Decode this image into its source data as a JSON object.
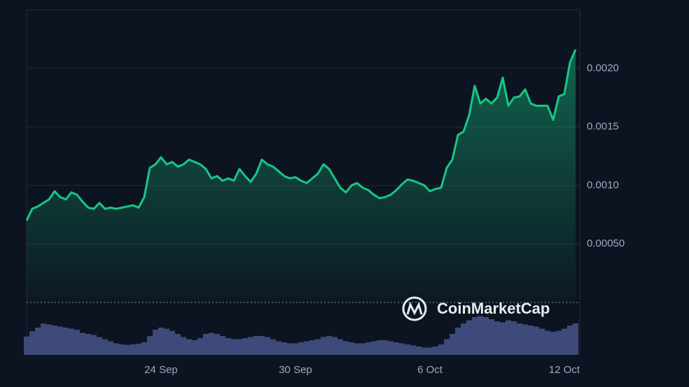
{
  "watermark": "CoinMarketCap",
  "chart_data": {
    "type": "line",
    "color": "#16c784",
    "volume_color": "#3d4a7a",
    "grid": true,
    "categories": [
      null,
      null,
      null,
      null,
      null,
      null,
      null,
      null,
      null,
      null,
      null,
      null,
      null,
      null,
      null,
      null,
      null,
      null,
      null,
      null,
      null,
      null,
      null,
      null,
      "24 Sep",
      null,
      null,
      null,
      null,
      null,
      null,
      null,
      null,
      null,
      null,
      null,
      null,
      null,
      null,
      null,
      null,
      null,
      null,
      null,
      null,
      null,
      null,
      null,
      "30 Sep",
      null,
      null,
      null,
      null,
      null,
      null,
      null,
      null,
      null,
      null,
      null,
      null,
      null,
      null,
      null,
      null,
      null,
      null,
      null,
      null,
      null,
      null,
      null,
      "6 Oct",
      null,
      null,
      null,
      null,
      null,
      null,
      null,
      null,
      null,
      null,
      null,
      null,
      null,
      null,
      null,
      null,
      null,
      null,
      null,
      null,
      null,
      null,
      null,
      "12 Oct",
      null,
      null
    ],
    "values": [
      0.0007,
      0.0008,
      0.00082,
      0.00085,
      0.00088,
      0.00095,
      0.0009,
      0.00088,
      0.00094,
      0.00092,
      0.00086,
      0.00081,
      0.0008,
      0.00085,
      0.0008,
      0.00081,
      0.0008,
      0.00081,
      0.00082,
      0.00083,
      0.00081,
      0.0009,
      0.00115,
      0.00118,
      0.00124,
      0.00118,
      0.0012,
      0.00116,
      0.00118,
      0.00122,
      0.0012,
      0.00118,
      0.00114,
      0.00106,
      0.00108,
      0.00104,
      0.00106,
      0.00104,
      0.00114,
      0.00108,
      0.00103,
      0.0011,
      0.00122,
      0.00118,
      0.00116,
      0.00112,
      0.00108,
      0.00106,
      0.00107,
      0.00104,
      0.00102,
      0.00106,
      0.0011,
      0.00118,
      0.00114,
      0.00106,
      0.00098,
      0.00094,
      0.001,
      0.00102,
      0.00098,
      0.00096,
      0.00092,
      0.00089,
      0.0009,
      0.00092,
      0.00096,
      0.00101,
      0.00105,
      0.00104,
      0.00102,
      0.001,
      0.00095,
      0.00097,
      0.00098,
      0.00115,
      0.00122,
      0.00143,
      0.00146,
      0.0016,
      0.00185,
      0.0017,
      0.00174,
      0.0017,
      0.00175,
      0.00192,
      0.00168,
      0.00175,
      0.00176,
      0.00182,
      0.0017,
      0.00168,
      0.00168,
      0.00168,
      0.00156,
      0.00176,
      0.00178,
      0.00205,
      0.00216
    ],
    "volume": [
      35,
      45,
      52,
      60,
      58,
      56,
      54,
      52,
      50,
      48,
      42,
      40,
      38,
      34,
      30,
      26,
      22,
      20,
      19,
      20,
      21,
      24,
      36,
      48,
      52,
      50,
      46,
      40,
      34,
      30,
      28,
      32,
      40,
      42,
      40,
      36,
      32,
      30,
      30,
      32,
      34,
      36,
      36,
      34,
      30,
      26,
      24,
      22,
      22,
      24,
      26,
      28,
      30,
      34,
      36,
      34,
      30,
      26,
      24,
      22,
      22,
      24,
      26,
      28,
      28,
      26,
      24,
      22,
      20,
      18,
      16,
      14,
      14,
      16,
      20,
      30,
      40,
      52,
      60,
      66,
      72,
      74,
      72,
      68,
      64,
      62,
      66,
      64,
      60,
      58,
      56,
      54,
      50,
      46,
      44,
      46,
      50,
      56,
      60
    ],
    "ylim": [
      0,
      0.0025
    ],
    "y2lim": [
      0,
      100
    ],
    "yticks": [
      {
        "value": 0.0005,
        "label": "0.00050"
      },
      {
        "value": 0.001,
        "label": "0.0010"
      },
      {
        "value": 0.0015,
        "label": "0.0015"
      },
      {
        "value": 0.002,
        "label": "0.0020"
      }
    ]
  }
}
